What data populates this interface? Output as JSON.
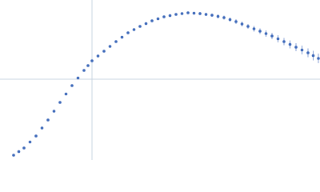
{
  "chart_data": {
    "type": "scatter",
    "xlim": [
      0,
      400
    ],
    "ylim": [
      0,
      200
    ],
    "vlines": [
      115
    ],
    "hlines": [
      101
    ],
    "line_color": "#c8d4e0",
    "series": [
      {
        "color": "#3a66b8",
        "x": [
          17,
          23.5,
          30,
          37.5,
          45,
          52.5,
          60,
          67.5,
          75,
          82.5,
          90,
          97.5,
          105,
          110,
          115,
          122.5,
          130,
          137.5,
          145,
          152.5,
          160,
          167.5,
          175,
          182.5,
          190,
          197.5,
          205,
          212.5,
          220,
          227.5,
          235,
          242.5,
          250,
          257.5,
          265,
          272.5,
          280,
          287.5,
          295,
          302.5,
          310,
          317.5,
          325,
          332.5,
          340,
          347.5,
          355,
          362.5,
          370,
          377.5,
          385,
          391.5,
          398
        ],
        "values": [
          6,
          10.5,
          15,
          22.5,
          30,
          40,
          50,
          61,
          72,
          82.5,
          93,
          102.5,
          112,
          118,
          124,
          130,
          136,
          142,
          148,
          153.5,
          159,
          163,
          167,
          170.5,
          174,
          176.5,
          179,
          180.5,
          182,
          183,
          184,
          183.5,
          183,
          182,
          181,
          179.5,
          178,
          175.5,
          173,
          170,
          167,
          164,
          161,
          158,
          155,
          151.5,
          148,
          144.5,
          141,
          137.5,
          134,
          130.5,
          127
        ],
        "errors": [
          0.5,
          0.5,
          0.5,
          0.5,
          0.5,
          0.5,
          0.5,
          0.5,
          0.5,
          0.5,
          0.5,
          0.5,
          0.5,
          0.5,
          0.5,
          0.5,
          0.5,
          0.5,
          0.5,
          0.5,
          0.5,
          0.5,
          0.5,
          0.5,
          0.5,
          0.5,
          1,
          1,
          1,
          1.5,
          1.5,
          1.5,
          2,
          2,
          2,
          2.5,
          2.5,
          2.5,
          3,
          3,
          3,
          3.5,
          3.5,
          4,
          4,
          4.5,
          4.5,
          5,
          5,
          5.5,
          5.5,
          6,
          6
        ]
      }
    ]
  }
}
